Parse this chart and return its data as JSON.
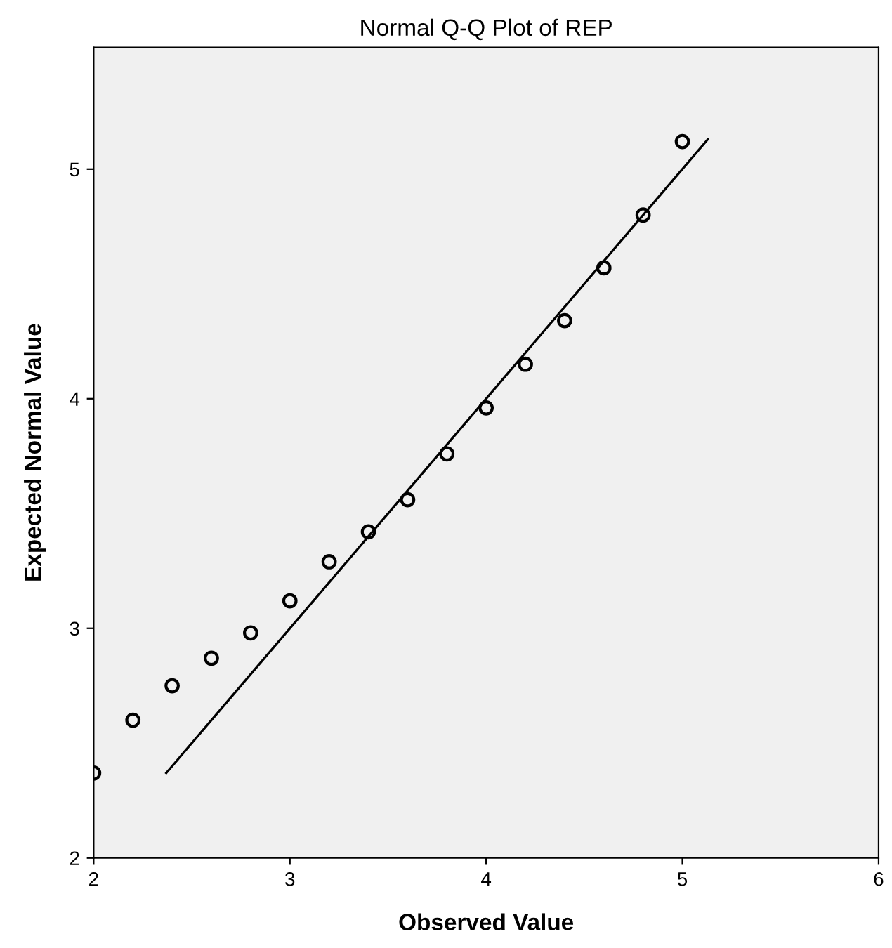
{
  "chart_data": {
    "type": "scatter",
    "title": "Normal Q-Q Plot of REP",
    "xlabel": "Observed Value",
    "ylabel": "Expected Normal Value",
    "xlim": [
      2,
      6
    ],
    "ylim": [
      2,
      5.53
    ],
    "xticks": [
      2,
      3,
      4,
      5,
      6
    ],
    "yticks": [
      2,
      3,
      4,
      5
    ],
    "grid": false,
    "legend": false,
    "series": [
      {
        "marker": "circle",
        "color": "#000000",
        "x": [
          2.0,
          2.2,
          2.4,
          2.6,
          2.8,
          3.0,
          3.2,
          3.4,
          3.6,
          3.8,
          4.0,
          4.2,
          4.4,
          4.6,
          4.8,
          5.0
        ],
        "values": [
          2.37,
          2.6,
          2.75,
          2.87,
          2.98,
          3.12,
          3.29,
          3.42,
          3.56,
          3.76,
          3.96,
          4.15,
          4.34,
          4.57,
          4.8,
          5.12
        ]
      },
      {
        "type": "line",
        "marker": "none",
        "color": "#000000",
        "x": [
          2.37,
          5.13
        ],
        "values": [
          2.37,
          5.13
        ]
      }
    ]
  }
}
